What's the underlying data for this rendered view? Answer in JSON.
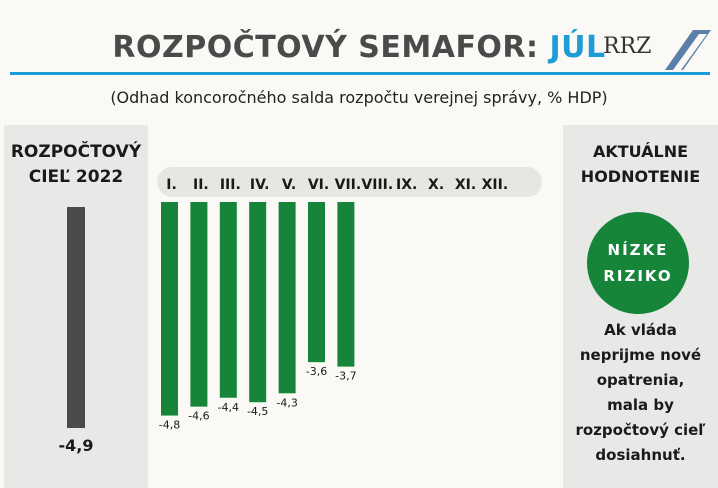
{
  "header": {
    "title_main": "ROZPOČTOVÝ SEMAFOR:",
    "title_month": "JÚL",
    "logo_text": "RRZ",
    "subtitle": "(Odhad koncoročného salda rozpočtu verejnej správy,  % HDP)"
  },
  "target_panel": {
    "heading_line1": "ROZPOČTOVÝ",
    "heading_line2": "CIEĽ 2022",
    "value": -4.9,
    "value_label": "-4,9"
  },
  "assessment_panel": {
    "heading_line1": "AKTUÁLNE",
    "heading_line2": "HODNOTENIE",
    "badge_line1": "NÍZKE",
    "badge_line2": "RIZIKO",
    "note_lines": [
      "Ak vláda",
      "neprijme nové",
      "opatrenia,",
      "mala by",
      "rozpočtový cieľ",
      "dosiahnuť."
    ]
  },
  "colors": {
    "accent": "#1e9cd7",
    "bar": "#16853a",
    "target_bar": "#4b4b4b",
    "panel": "#e8e8e6"
  },
  "chart_data": {
    "type": "bar",
    "categories": [
      "I.",
      "II.",
      "III.",
      "IV.",
      "V.",
      "VI.",
      "VII.",
      "VIII.",
      "IX.",
      "X.",
      "XI.",
      "XII."
    ],
    "values": [
      -4.8,
      -4.6,
      -4.4,
      -4.5,
      -4.3,
      -3.6,
      -3.7,
      null,
      null,
      null,
      null,
      null
    ],
    "value_labels": [
      "-4,8",
      "-4,6",
      "-4,4",
      "-4,5",
      "-4,3",
      "-3,6",
      "-3,7",
      "",
      "",
      "",
      "",
      ""
    ],
    "ylim": [
      -4.9,
      0
    ]
  }
}
